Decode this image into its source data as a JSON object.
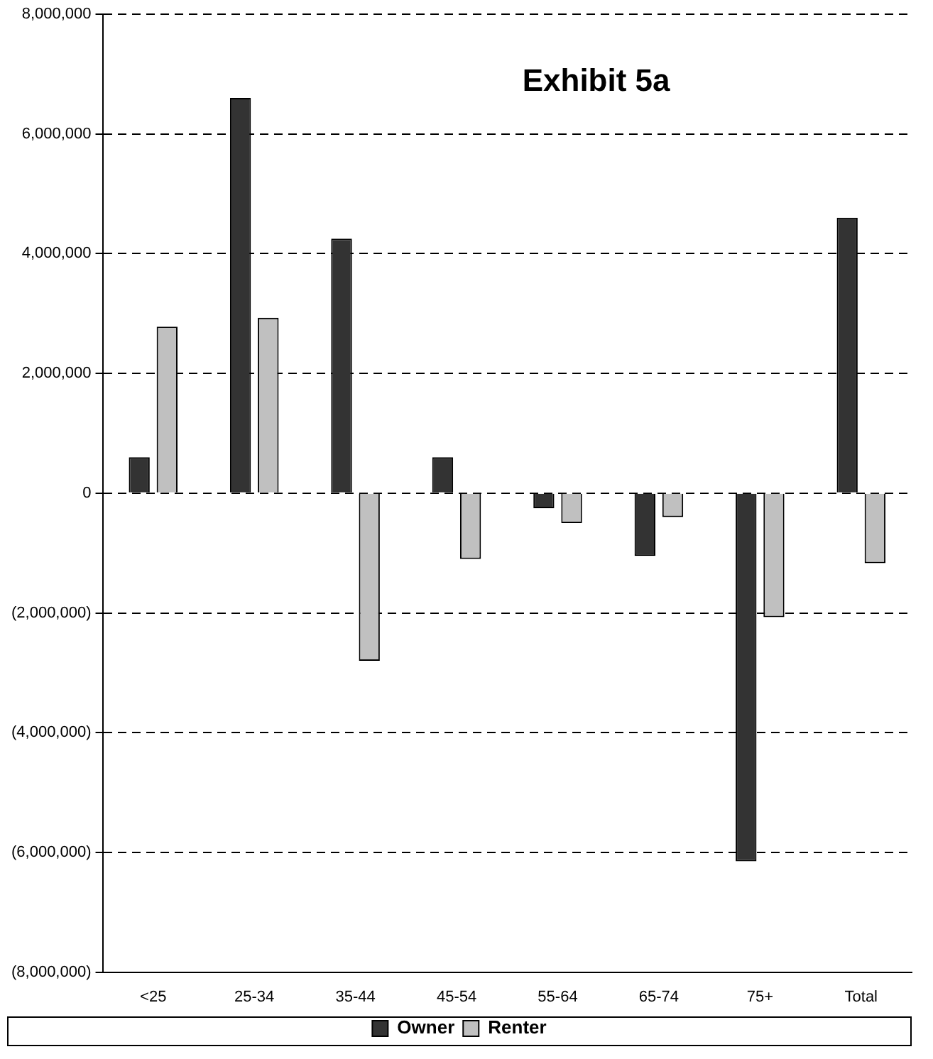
{
  "chart_data": {
    "type": "bar",
    "title": "Exhibit 5a",
    "categories": [
      "<25",
      "25-34",
      "35-44",
      "45-54",
      "55-64",
      "65-74",
      "75+",
      "Total"
    ],
    "series": [
      {
        "name": "Owner",
        "color": "#333333",
        "values": [
          600000,
          6600000,
          4250000,
          600000,
          -250000,
          -1050000,
          -6150000,
          4600000
        ]
      },
      {
        "name": "Renter",
        "color": "#c0c0c0",
        "values": [
          2780000,
          2930000,
          -2800000,
          -1100000,
          -500000,
          -400000,
          -2070000,
          -1170000
        ]
      }
    ],
    "ylim": [
      -8000000,
      8000000
    ],
    "yticks": [
      {
        "value": -8000000,
        "label": "(8,000,000)"
      },
      {
        "value": -6000000,
        "label": "(6,000,000)"
      },
      {
        "value": -4000000,
        "label": "(4,000,000)"
      },
      {
        "value": -2000000,
        "label": "(2,000,000)"
      },
      {
        "value": 0,
        "label": "0"
      },
      {
        "value": 2000000,
        "label": "2,000,000"
      },
      {
        "value": 4000000,
        "label": "4,000,000"
      },
      {
        "value": 6000000,
        "label": "6,000,000"
      },
      {
        "value": 8000000,
        "label": "8,000,000"
      }
    ],
    "grid": "y",
    "legend": "bottom",
    "line_style": "dashed"
  }
}
